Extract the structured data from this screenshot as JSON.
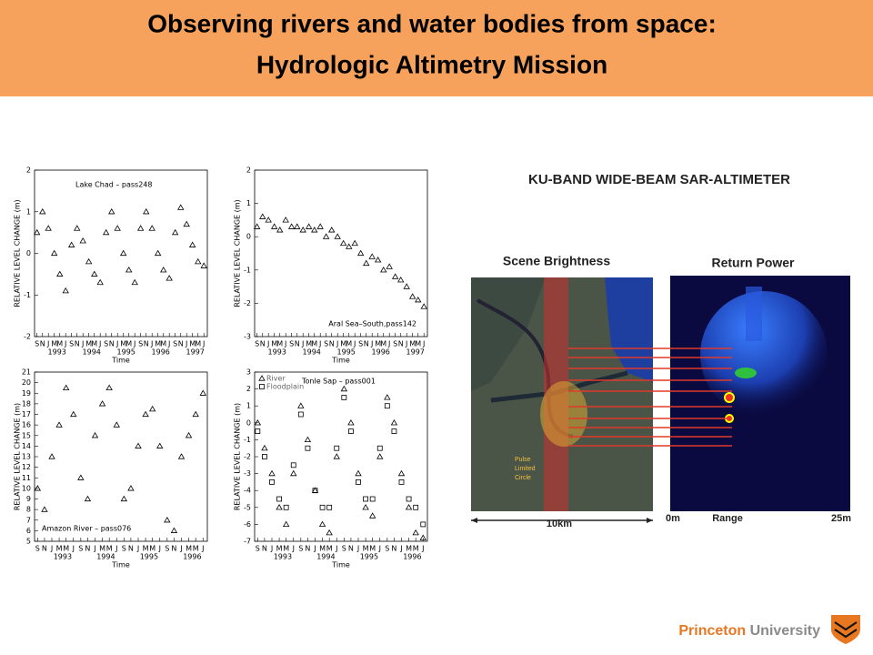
{
  "header": {
    "title_line1": "Observing rivers and water bodies from space:",
    "title_line2": "Hydrologic Altimetry Mission"
  },
  "chart_data": [
    {
      "type": "scatter",
      "title": "Lake Chad – pass248",
      "x_label": "Time",
      "y_label": "RELATIVE LEVEL CHANGE (m)",
      "xlim": [
        1992.6,
        1997.6
      ],
      "ylim": [
        -2,
        2
      ],
      "yticks": [
        -2,
        -1,
        0,
        1,
        2
      ],
      "xticks": [
        {
          "value": 1992.67,
          "label": "S"
        },
        {
          "value": 1992.83,
          "label": "N"
        },
        {
          "value": 1993,
          "label": "J"
        },
        {
          "value": 1993.17,
          "label": "M"
        },
        {
          "value": 1993.33,
          "label": "M"
        },
        {
          "value": 1993.5,
          "label": "J"
        },
        {
          "value": 1993.67,
          "label": "S"
        },
        {
          "value": 1993.83,
          "label": "N"
        },
        {
          "value": 1994,
          "label": "J"
        },
        {
          "value": 1994.17,
          "label": "M"
        },
        {
          "value": 1994.33,
          "label": "M"
        },
        {
          "value": 1994.5,
          "label": "J"
        },
        {
          "value": 1994.67,
          "label": "S"
        },
        {
          "value": 1994.83,
          "label": "N"
        },
        {
          "value": 1995,
          "label": "J"
        },
        {
          "value": 1995.17,
          "label": "M"
        },
        {
          "value": 1995.33,
          "label": "M"
        },
        {
          "value": 1995.5,
          "label": "J"
        },
        {
          "value": 1995.67,
          "label": "S"
        },
        {
          "value": 1995.83,
          "label": "N"
        },
        {
          "value": 1996,
          "label": "J"
        },
        {
          "value": 1996.17,
          "label": "M"
        },
        {
          "value": 1996.33,
          "label": "M"
        },
        {
          "value": 1996.5,
          "label": "J"
        },
        {
          "value": 1996.67,
          "label": "S"
        },
        {
          "value": 1996.83,
          "label": "N"
        },
        {
          "value": 1997,
          "label": "J"
        },
        {
          "value": 1997.17,
          "label": "M"
        },
        {
          "value": 1997.33,
          "label": "M"
        },
        {
          "value": 1997.5,
          "label": "J"
        }
      ],
      "year_labels": [
        "1993",
        "1994",
        "1995",
        "1996",
        "1997"
      ],
      "x": [
        1992.67,
        1992.83,
        1993,
        1993.17,
        1993.33,
        1993.5,
        1993.67,
        1993.83,
        1994,
        1994.17,
        1994.33,
        1994.5,
        1994.67,
        1994.83,
        1995,
        1995.17,
        1995.33,
        1995.5,
        1995.67,
        1995.83,
        1996,
        1996.17,
        1996.33,
        1996.5,
        1996.67,
        1996.83,
        1997,
        1997.17,
        1997.33,
        1997.5
      ],
      "series": [
        {
          "marker": "triangle",
          "color": "#000000",
          "values": [
            0.5,
            1.0,
            0.6,
            0.0,
            -0.5,
            -0.9,
            0.2,
            0.6,
            0.3,
            -0.2,
            -0.5,
            -0.7,
            0.5,
            1.0,
            0.6,
            0.0,
            -0.4,
            -0.7,
            0.6,
            1.0,
            0.6,
            0.0,
            -0.4,
            -0.6,
            0.5,
            1.1,
            0.7,
            0.2,
            -0.2,
            -0.3
          ]
        }
      ]
    },
    {
      "type": "scatter",
      "title": "Aral Sea–South,pass142",
      "x_label": "Time",
      "y_label": "RELATIVE LEVEL CHANGE (m)",
      "xlim": [
        1992.6,
        1997.6
      ],
      "ylim": [
        -3,
        2
      ],
      "yticks": [
        -3,
        -2,
        -1,
        0,
        1,
        2
      ],
      "xticks": [
        {
          "value": 1992.67,
          "label": "S"
        },
        {
          "value": 1992.83,
          "label": "N"
        },
        {
          "value": 1993,
          "label": "J"
        },
        {
          "value": 1993.17,
          "label": "M"
        },
        {
          "value": 1993.33,
          "label": "M"
        },
        {
          "value": 1993.5,
          "label": "J"
        },
        {
          "value": 1993.67,
          "label": "S"
        },
        {
          "value": 1993.83,
          "label": "N"
        },
        {
          "value": 1994,
          "label": "J"
        },
        {
          "value": 1994.17,
          "label": "M"
        },
        {
          "value": 1994.33,
          "label": "M"
        },
        {
          "value": 1994.5,
          "label": "J"
        },
        {
          "value": 1994.67,
          "label": "S"
        },
        {
          "value": 1994.83,
          "label": "N"
        },
        {
          "value": 1995,
          "label": "J"
        },
        {
          "value": 1995.17,
          "label": "M"
        },
        {
          "value": 1995.33,
          "label": "M"
        },
        {
          "value": 1995.5,
          "label": "J"
        },
        {
          "value": 1995.67,
          "label": "S"
        },
        {
          "value": 1995.83,
          "label": "N"
        },
        {
          "value": 1996,
          "label": "J"
        },
        {
          "value": 1996.17,
          "label": "M"
        },
        {
          "value": 1996.33,
          "label": "M"
        },
        {
          "value": 1996.5,
          "label": "J"
        },
        {
          "value": 1996.67,
          "label": "S"
        },
        {
          "value": 1996.83,
          "label": "N"
        },
        {
          "value": 1997,
          "label": "J"
        },
        {
          "value": 1997.17,
          "label": "M"
        },
        {
          "value": 1997.33,
          "label": "M"
        },
        {
          "value": 1997.5,
          "label": "J"
        }
      ],
      "year_labels": [
        "1993",
        "1994",
        "1995",
        "1996",
        "1997"
      ],
      "x": [
        1992.67,
        1992.83,
        1993,
        1993.17,
        1993.33,
        1993.5,
        1993.67,
        1993.83,
        1994,
        1994.17,
        1994.33,
        1994.5,
        1994.67,
        1994.83,
        1995,
        1995.17,
        1995.33,
        1995.5,
        1995.67,
        1995.83,
        1996,
        1996.17,
        1996.33,
        1996.5,
        1996.67,
        1996.83,
        1997,
        1997.17,
        1997.33,
        1997.5
      ],
      "series": [
        {
          "marker": "triangle",
          "color": "#000000",
          "values": [
            0.3,
            0.6,
            0.5,
            0.3,
            0.2,
            0.5,
            0.3,
            0.3,
            0.2,
            0.3,
            0.2,
            0.3,
            0.0,
            0.2,
            0.0,
            -0.2,
            -0.3,
            -0.2,
            -0.5,
            -0.8,
            -0.6,
            -0.7,
            -1.0,
            -0.9,
            -1.2,
            -1.3,
            -1.5,
            -1.8,
            -1.9,
            -2.1
          ]
        }
      ]
    },
    {
      "type": "scatter",
      "title": "Amazon River – pass076",
      "x_label": "Time",
      "y_label": "RELATIVE LEVEL CHANGE (m)",
      "xlim": [
        1992.6,
        1996.6
      ],
      "ylim": [
        5,
        21
      ],
      "yticks": [
        5,
        6,
        7,
        8,
        9,
        10,
        11,
        12,
        13,
        14,
        15,
        16,
        17,
        18,
        19,
        20,
        21
      ],
      "xticks": [
        {
          "value": 1992.67,
          "label": "S"
        },
        {
          "value": 1992.83,
          "label": "N"
        },
        {
          "value": 1993,
          "label": "J"
        },
        {
          "value": 1993.17,
          "label": "M"
        },
        {
          "value": 1993.33,
          "label": "M"
        },
        {
          "value": 1993.5,
          "label": "J"
        },
        {
          "value": 1993.67,
          "label": "S"
        },
        {
          "value": 1993.83,
          "label": "N"
        },
        {
          "value": 1994,
          "label": "J"
        },
        {
          "value": 1994.17,
          "label": "M"
        },
        {
          "value": 1994.33,
          "label": "M"
        },
        {
          "value": 1994.5,
          "label": "J"
        },
        {
          "value": 1994.67,
          "label": "S"
        },
        {
          "value": 1994.83,
          "label": "N"
        },
        {
          "value": 1995,
          "label": "J"
        },
        {
          "value": 1995.17,
          "label": "M"
        },
        {
          "value": 1995.33,
          "label": "M"
        },
        {
          "value": 1995.5,
          "label": "J"
        },
        {
          "value": 1995.67,
          "label": "S"
        },
        {
          "value": 1995.83,
          "label": "N"
        },
        {
          "value": 1996,
          "label": "J"
        },
        {
          "value": 1996.17,
          "label": "M"
        },
        {
          "value": 1996.33,
          "label": "M"
        },
        {
          "value": 1996.5,
          "label": "J"
        }
      ],
      "year_labels": [
        "1993",
        "1994",
        "1995",
        "1996"
      ],
      "x": [
        1992.67,
        1992.83,
        1993,
        1993.17,
        1993.33,
        1993.5,
        1993.67,
        1993.83,
        1994,
        1994.17,
        1994.33,
        1994.5,
        1994.67,
        1994.83,
        1995,
        1995.17,
        1995.33,
        1995.5,
        1995.67,
        1995.83,
        1996,
        1996.17,
        1996.33,
        1996.5
      ],
      "series": [
        {
          "marker": "triangle",
          "color": "#000000",
          "values": [
            10,
            8,
            13,
            16,
            19.5,
            17,
            11,
            9,
            15,
            18,
            19.5,
            16,
            9,
            10,
            14,
            17,
            17.5,
            14,
            7,
            6,
            13,
            15,
            17,
            19
          ]
        }
      ]
    },
    {
      "type": "scatter",
      "title": "Tonle Sap – pass001",
      "x_label": "Time",
      "y_label": "RELATIVE LEVEL CHANGE (m)",
      "xlim": [
        1992.6,
        1996.6
      ],
      "ylim": [
        -7,
        3
      ],
      "yticks": [
        -7,
        -6,
        -5,
        -4,
        -3,
        -2,
        -1,
        0,
        1,
        2,
        3
      ],
      "xticks": [
        {
          "value": 1992.67,
          "label": "S"
        },
        {
          "value": 1992.83,
          "label": "N"
        },
        {
          "value": 1993,
          "label": "J"
        },
        {
          "value": 1993.17,
          "label": "M"
        },
        {
          "value": 1993.33,
          "label": "M"
        },
        {
          "value": 1993.5,
          "label": "J"
        },
        {
          "value": 1993.67,
          "label": "S"
        },
        {
          "value": 1993.83,
          "label": "N"
        },
        {
          "value": 1994,
          "label": "J"
        },
        {
          "value": 1994.17,
          "label": "M"
        },
        {
          "value": 1994.33,
          "label": "M"
        },
        {
          "value": 1994.5,
          "label": "J"
        },
        {
          "value": 1994.67,
          "label": "S"
        },
        {
          "value": 1994.83,
          "label": "N"
        },
        {
          "value": 1995,
          "label": "J"
        },
        {
          "value": 1995.17,
          "label": "M"
        },
        {
          "value": 1995.33,
          "label": "M"
        },
        {
          "value": 1995.5,
          "label": "J"
        },
        {
          "value": 1995.67,
          "label": "S"
        },
        {
          "value": 1995.83,
          "label": "N"
        },
        {
          "value": 1996,
          "label": "J"
        },
        {
          "value": 1996.17,
          "label": "M"
        },
        {
          "value": 1996.33,
          "label": "M"
        },
        {
          "value": 1996.5,
          "label": "J"
        }
      ],
      "year_labels": [
        "1993",
        "1994",
        "1995",
        "1996"
      ],
      "x": [
        1992.67,
        1992.83,
        1993,
        1993.17,
        1993.33,
        1993.5,
        1993.67,
        1993.83,
        1994,
        1994.17,
        1994.33,
        1994.5,
        1994.67,
        1994.83,
        1995,
        1995.17,
        1995.33,
        1995.5,
        1995.67,
        1995.83,
        1996,
        1996.17,
        1996.33,
        1996.5
      ],
      "series": [
        {
          "name": "River",
          "marker": "triangle",
          "color": "#000000",
          "values": [
            0,
            -1.5,
            -3,
            -5,
            -6,
            -3,
            1,
            -1,
            -4,
            -6,
            -6.5,
            -2,
            2,
            0,
            -3,
            -5,
            -5.5,
            -2,
            1.5,
            0,
            -3,
            -5,
            -6.5,
            -6.8
          ]
        },
        {
          "name": "Floodplain",
          "marker": "square",
          "color": "#000000",
          "values": [
            -0.5,
            -2,
            -3.5,
            -4.5,
            -5,
            -2.5,
            0.5,
            -1.5,
            -4,
            -5,
            -5,
            -1.5,
            1.5,
            -0.5,
            -3.5,
            -4.5,
            -4.5,
            -1.5,
            1,
            -0.5,
            -3.5,
            -4.5,
            -5,
            -6
          ]
        }
      ]
    }
  ],
  "figure": {
    "title": "KU-BAND WIDE-BEAM SAR-ALTIMETER",
    "left_label": "Scene Brightness",
    "right_label": "Return Power",
    "circle_label": [
      "Pulse",
      "Limited",
      "Circle"
    ],
    "scale_label": "10km",
    "range_start": "0m",
    "range_label": "Range",
    "range_end": "25m"
  },
  "footer": {
    "name1": "Princeton",
    "name2": "University"
  }
}
